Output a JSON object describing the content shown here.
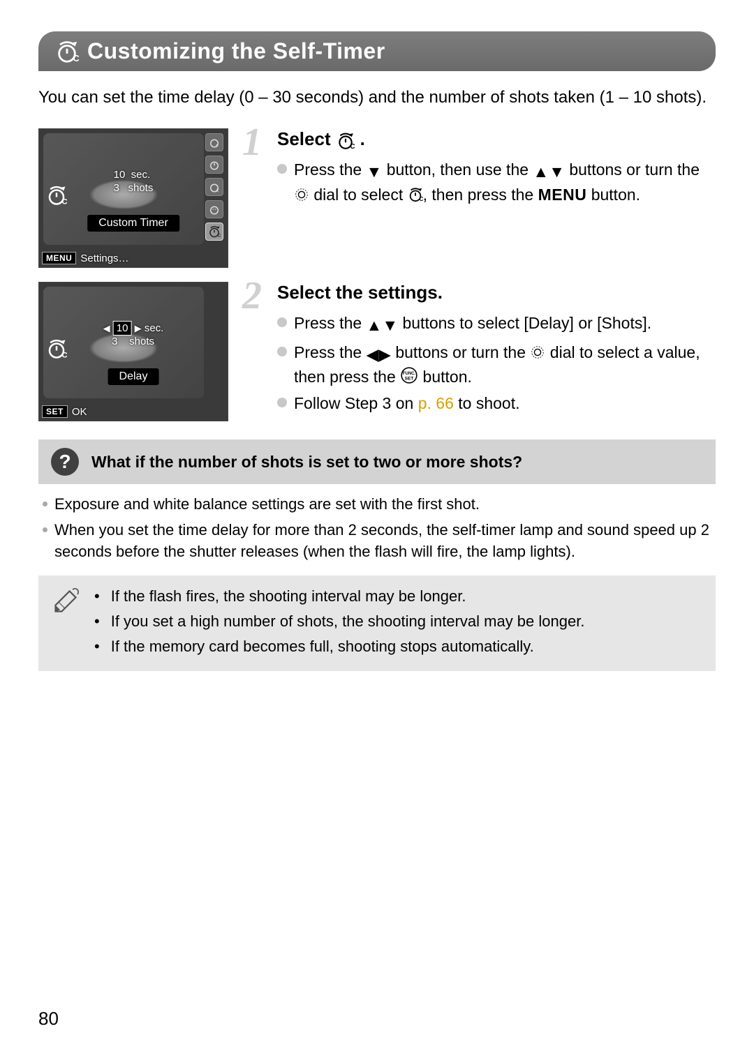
{
  "title_bar": {
    "title": "Customizing the Self-Timer",
    "icon": "self-timer-c-icon"
  },
  "intro": "You can set the time delay (0 – 30 seconds) and the number of shots taken (1 – 10 shots).",
  "steps": [
    {
      "number": "1",
      "heading_prefix": "Select ",
      "heading_icon": "self-timer-c-icon",
      "heading_suffix": ".",
      "bullets": [
        {
          "parts": [
            {
              "t": "Press the "
            },
            {
              "sym": "down"
            },
            {
              "t": " button, then use the "
            },
            {
              "sym": "up"
            },
            {
              "sym": "down"
            },
            {
              "t": " buttons or turn the "
            },
            {
              "sym": "dial"
            },
            {
              "t": " dial to select "
            },
            {
              "sym": "timer-c"
            },
            {
              "t": ", then press the "
            },
            {
              "menu": "MENU"
            },
            {
              "t": " button."
            }
          ]
        }
      ],
      "screenshot": {
        "row1": {
          "val": "10",
          "unit": "sec."
        },
        "row2": {
          "val": "3",
          "unit": "shots"
        },
        "label": "Custom Timer",
        "bottom_btn": "MENU",
        "bottom_text": "Settings…",
        "side_selected_index": 4
      }
    },
    {
      "number": "2",
      "heading_prefix": "Select the settings.",
      "heading_icon": null,
      "heading_suffix": "",
      "bullets": [
        {
          "parts": [
            {
              "t": "Press the "
            },
            {
              "sym": "up"
            },
            {
              "sym": "down"
            },
            {
              "t": " buttons to select [Delay] or [Shots]."
            }
          ]
        },
        {
          "parts": [
            {
              "t": "Press the "
            },
            {
              "sym": "left"
            },
            {
              "sym": "right"
            },
            {
              "t": " buttons or turn the "
            },
            {
              "sym": "dial"
            },
            {
              "t": " dial to select a value, then press the "
            },
            {
              "sym": "func-set"
            },
            {
              "t": " button."
            }
          ]
        },
        {
          "parts": [
            {
              "t": "Follow Step 3 on "
            },
            {
              "link": "p. 66"
            },
            {
              "t": " to shoot."
            }
          ]
        }
      ],
      "screenshot": {
        "row1": {
          "val": "10",
          "unit": "sec.",
          "highlight": true,
          "arrows": true
        },
        "row2": {
          "val": "3",
          "unit": "shots"
        },
        "label": "Delay",
        "bottom_btn": "SET",
        "bottom_text": "OK",
        "side_selected_index": -1
      }
    }
  ],
  "question_box": {
    "icon_text": "?",
    "heading": "What if the number of shots is set to two or more shots?",
    "items": [
      "Exposure and white balance settings are set with the first shot.",
      "When you set the time delay for more than 2 seconds, the self-timer lamp and sound speed up 2 seconds before the shutter releases (when the flash will fire, the lamp lights)."
    ]
  },
  "note_box": {
    "items": [
      "If the flash fires, the shooting interval may be longer.",
      "If you set a high number of shots, the shooting interval may be longer.",
      "If the memory card becomes full, shooting stops automatically."
    ]
  },
  "page_number": "80",
  "colors": {
    "title_bar_bg": "#6f6f6f",
    "title_text": "#ffffff",
    "step_number": "#d0d0d0",
    "bullet_dot": "#c8c8c8",
    "note_bg": "#e6e6e6",
    "q_header_bg": "#d3d3d3",
    "q_icon_bg": "#404040",
    "link_color": "#d8a000"
  }
}
